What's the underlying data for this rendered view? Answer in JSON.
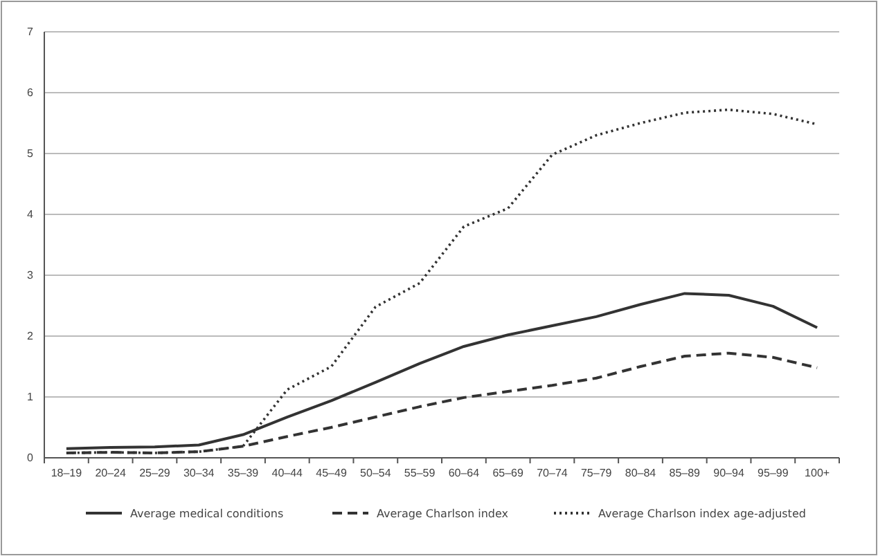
{
  "chart_data": {
    "type": "line",
    "categories": [
      "18–19",
      "20–24",
      "25–29",
      "30–34",
      "35–39",
      "40–44",
      "45–49",
      "50–54",
      "55–59",
      "60–64",
      "65–69",
      "70–74",
      "75–79",
      "80–84",
      "85–89",
      "90–94",
      "95–99",
      "100+"
    ],
    "series": [
      {
        "name": "Average medical conditions",
        "color": "#333333",
        "line_style": "solid",
        "values": [
          0.15,
          0.17,
          0.18,
          0.21,
          0.38,
          0.67,
          0.94,
          1.24,
          1.55,
          1.83,
          2.02,
          2.17,
          2.32,
          2.52,
          2.7,
          2.67,
          2.49,
          2.14
        ]
      },
      {
        "name": "Average Charlson index",
        "color": "#333333",
        "line_style": "dashed",
        "values": [
          0.08,
          0.09,
          0.08,
          0.1,
          0.19,
          0.35,
          0.5,
          0.67,
          0.84,
          0.99,
          1.09,
          1.19,
          1.31,
          1.5,
          1.67,
          1.72,
          1.65,
          1.48
        ]
      },
      {
        "name": "Average Charlson index age-adjusted",
        "color": "#333333",
        "line_style": "dotted",
        "values": [
          0.08,
          0.09,
          0.08,
          0.1,
          0.19,
          1.12,
          1.5,
          2.48,
          2.87,
          3.8,
          4.1,
          4.98,
          5.3,
          5.5,
          5.67,
          5.72,
          5.65,
          5.48
        ]
      }
    ],
    "ylim": [
      0,
      7
    ],
    "yticks": [
      0,
      1,
      2,
      3,
      4,
      5,
      6,
      7
    ],
    "grid": "y",
    "legend": "bottom",
    "marker": "none"
  }
}
